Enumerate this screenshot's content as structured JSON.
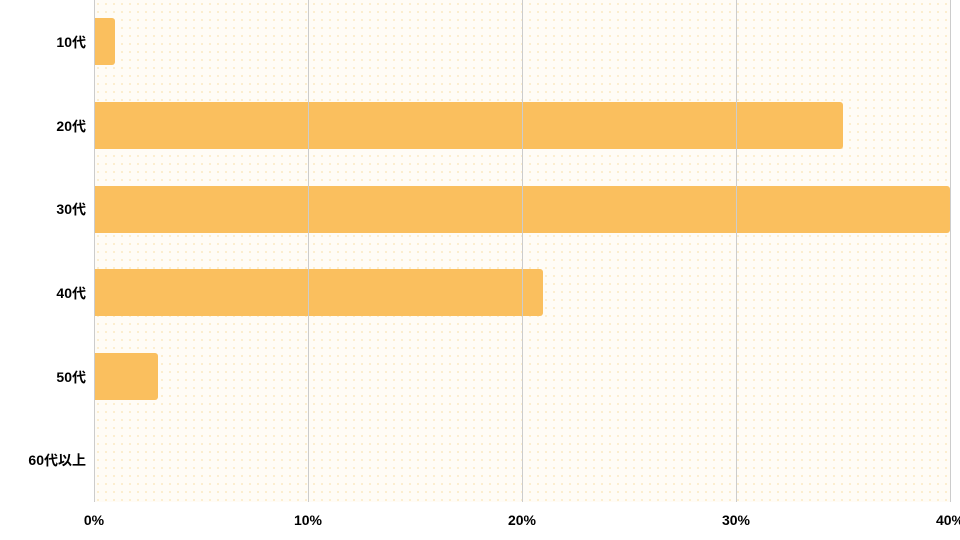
{
  "chart": {
    "type": "bar-horizontal",
    "background_color": "#ffffff",
    "plot_background_color": "#fffcf6",
    "dot_pattern_color": "#fbe9c2",
    "grid_color": "#cccccc",
    "text_color": "#000000",
    "bar_color": "#fabf5e",
    "label_fontsize_pt": 14,
    "category_fontsize_pt": 14,
    "bar_height_ratio": 0.56,
    "xaxis": {
      "min": 0,
      "max": 40,
      "ticks": [
        0,
        10,
        20,
        30,
        40
      ],
      "tick_labels": [
        "0%",
        "10%",
        "20%",
        "30%",
        "40%"
      ]
    },
    "categories": [
      "10代",
      "20代",
      "30代",
      "40代",
      "50代",
      "60代以上"
    ],
    "values": [
      1,
      35,
      40,
      21,
      3,
      0
    ]
  }
}
